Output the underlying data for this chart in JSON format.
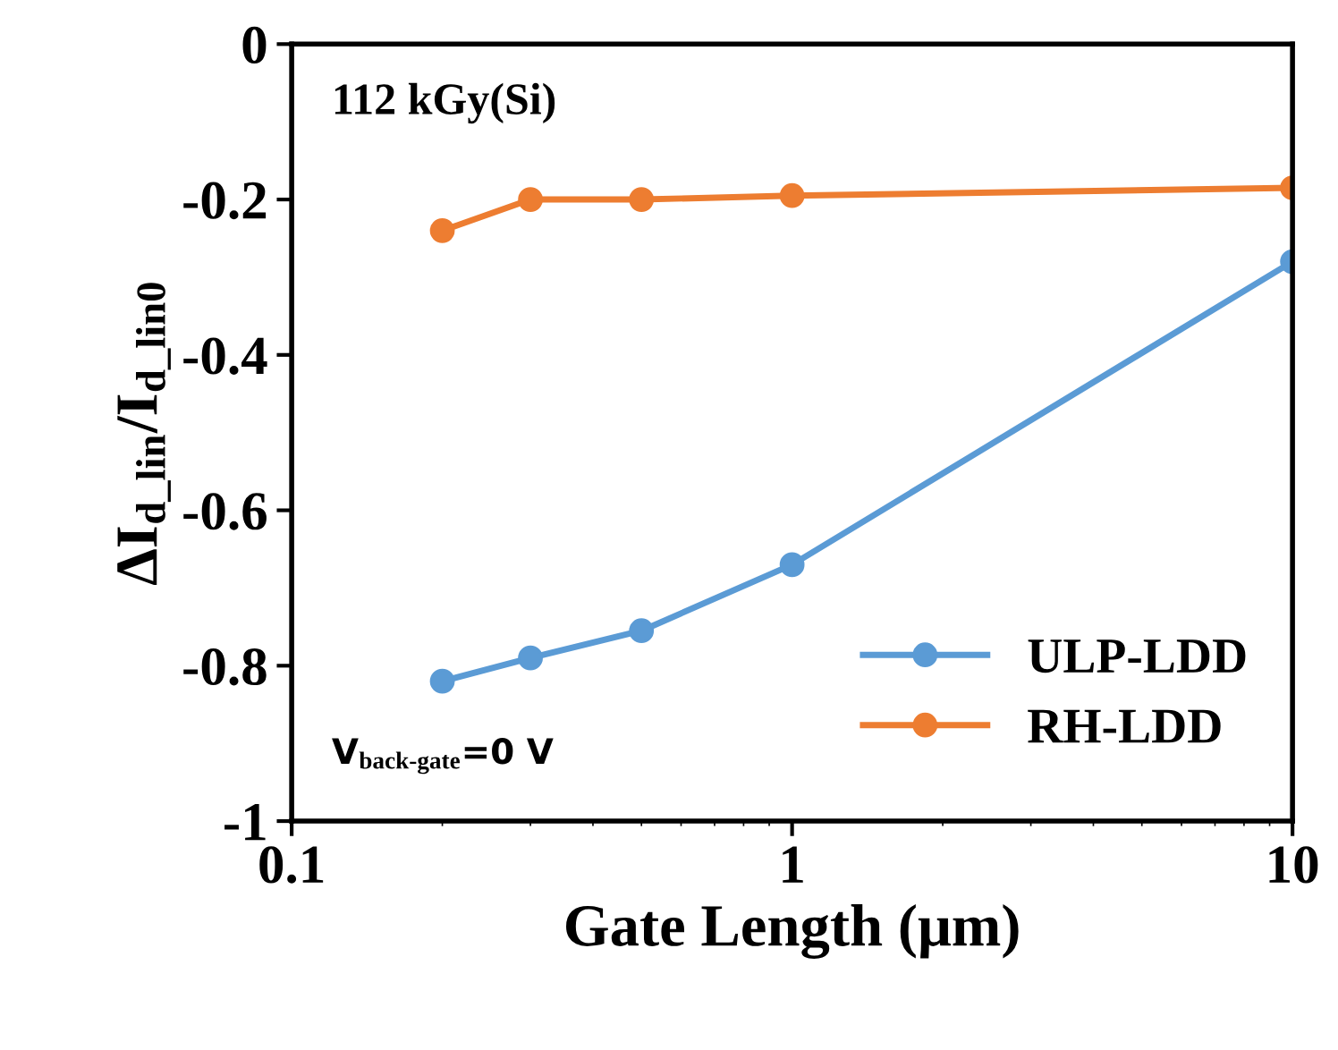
{
  "chart_data": {
    "type": "line",
    "xlabel": "Gate Length (μm)",
    "ylabel": "ΔI$_{d_lin}$/I$_{d_lin0}$",
    "log": "x",
    "xlim": [
      0.1,
      10
    ],
    "xticks": [
      0.1,
      1,
      10
    ],
    "ylim": [
      -1,
      0
    ],
    "yticks": [
      -1,
      -0.8,
      -0.6,
      -0.4,
      -0.2,
      0
    ],
    "marker": "circle",
    "legend": "bottom right",
    "grid": false,
    "x": [
      0.2,
      0.3,
      0.5,
      1,
      10
    ],
    "series": [
      {
        "name": "ULP-LDD",
        "color": "#5b9bd5",
        "values": [
          -0.82,
          -0.79,
          -0.755,
          -0.67,
          -0.28
        ]
      },
      {
        "name": "RH-LDD",
        "color": "#ed7d31",
        "values": [
          -0.24,
          -0.2,
          -0.2,
          -0.195,
          -0.185
        ]
      }
    ],
    "annotations": [
      "112 kGy(Si)",
      "V$_{back-gate}$=0 V"
    ]
  }
}
